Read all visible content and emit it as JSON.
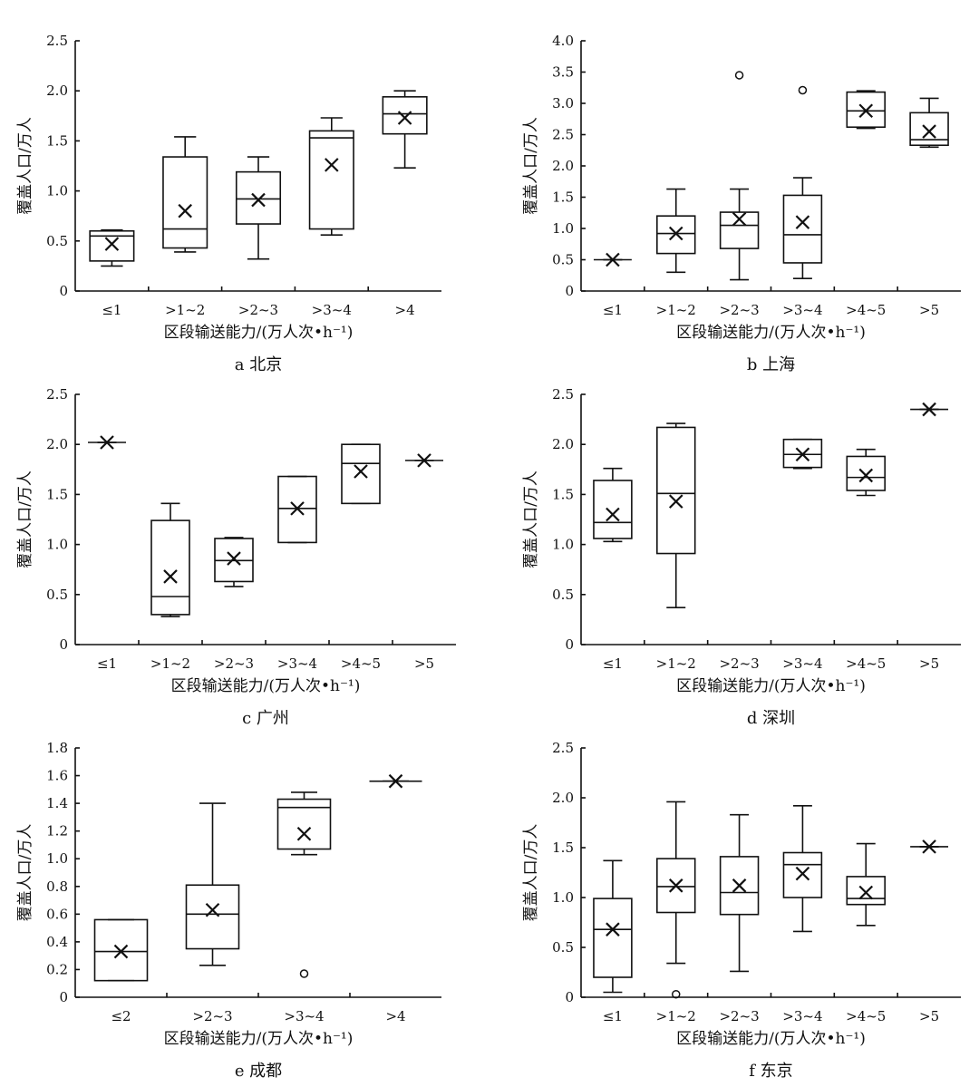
{
  "chart_data": [
    {
      "type": "box",
      "caption": "a 北京",
      "ylabel": "覆盖人口/万人",
      "xlabel": "区段输送能力/(万人次•h⁻¹)",
      "ylim": [
        0,
        2.5
      ],
      "yticks": [
        "0",
        "0.5",
        "1.0",
        "1.5",
        "2.0",
        "2.5"
      ],
      "categories": [
        "≤1",
        ">1~2",
        ">2~3",
        ">3~4",
        ">4"
      ],
      "boxes": [
        {
          "min": 0.25,
          "q1": 0.3,
          "median": 0.55,
          "q3": 0.6,
          "max": 0.61,
          "mean": 0.47
        },
        {
          "min": 0.39,
          "q1": 0.43,
          "median": 0.62,
          "q3": 1.34,
          "max": 1.54,
          "mean": 0.8
        },
        {
          "min": 0.32,
          "q1": 0.67,
          "median": 0.92,
          "q3": 1.19,
          "max": 1.34,
          "mean": 0.91
        },
        {
          "min": 0.56,
          "q1": 0.62,
          "median": 1.53,
          "q3": 1.6,
          "max": 1.73,
          "mean": 1.26
        },
        {
          "min": 1.23,
          "q1": 1.57,
          "median": 1.77,
          "q3": 1.94,
          "max": 2.0,
          "mean": 1.73
        }
      ],
      "outliers": []
    },
    {
      "type": "box",
      "caption": "b 上海",
      "ylabel": "覆盖人口/万人",
      "xlabel": "区段输送能力/(万人次•h⁻¹)",
      "ylim": [
        0,
        4.0
      ],
      "yticks": [
        "0",
        "0.5",
        "1.0",
        "1.5",
        "2.0",
        "2.5",
        "3.0",
        "3.5",
        "4.0"
      ],
      "categories": [
        "≤1",
        ">1~2",
        ">2~3",
        ">3~4",
        ">4~5",
        ">5"
      ],
      "boxes": [
        {
          "min": 0.5,
          "q1": 0.5,
          "median": 0.5,
          "q3": 0.5,
          "max": 0.5,
          "mean": 0.5
        },
        {
          "min": 0.3,
          "q1": 0.6,
          "median": 0.92,
          "q3": 1.2,
          "max": 1.63,
          "mean": 0.92
        },
        {
          "min": 0.18,
          "q1": 0.68,
          "median": 1.05,
          "q3": 1.26,
          "max": 1.63,
          "mean": 1.15
        },
        {
          "min": 0.2,
          "q1": 0.45,
          "median": 0.9,
          "q3": 1.53,
          "max": 1.81,
          "mean": 1.1
        },
        {
          "min": 2.6,
          "q1": 2.62,
          "median": 2.88,
          "q3": 3.18,
          "max": 3.2,
          "mean": 2.88
        },
        {
          "min": 2.3,
          "q1": 2.33,
          "median": 2.42,
          "q3": 2.85,
          "max": 3.08,
          "mean": 2.55
        }
      ],
      "outliers": [
        {
          "cat": 2,
          "value": 3.45
        },
        {
          "cat": 3,
          "value": 3.21
        }
      ]
    },
    {
      "type": "box",
      "caption": "c 广州",
      "ylabel": "覆盖人口/万人",
      "xlabel": "区段输送能力/(万人次•h⁻¹)",
      "ylim": [
        0,
        2.5
      ],
      "yticks": [
        "0",
        "0.5",
        "1.0",
        "1.5",
        "2.0",
        "2.5"
      ],
      "categories": [
        "≤1",
        ">1~2",
        ">2~3",
        ">3~4",
        ">4~5",
        ">5"
      ],
      "boxes": [
        {
          "min": 2.02,
          "q1": 2.02,
          "median": 2.02,
          "q3": 2.02,
          "max": 2.02,
          "mean": 2.02
        },
        {
          "min": 0.28,
          "q1": 0.3,
          "median": 0.48,
          "q3": 1.24,
          "max": 1.41,
          "mean": 0.68
        },
        {
          "min": 0.58,
          "q1": 0.63,
          "median": 0.84,
          "q3": 1.06,
          "max": 1.07,
          "mean": 0.86
        },
        {
          "min": 1.02,
          "q1": 1.02,
          "median": 1.36,
          "q3": 1.68,
          "max": 1.68,
          "mean": 1.36
        },
        {
          "min": 1.41,
          "q1": 1.41,
          "median": 1.81,
          "q3": 2.0,
          "max": 2.0,
          "mean": 1.73
        },
        {
          "min": 1.84,
          "q1": 1.84,
          "median": 1.84,
          "q3": 1.84,
          "max": 1.84,
          "mean": 1.84
        }
      ],
      "outliers": []
    },
    {
      "type": "box",
      "caption": "d 深圳",
      "ylabel": "覆盖人口/万人",
      "xlabel": "区段输送能力/(万人次•h⁻¹)",
      "ylim": [
        0,
        2.5
      ],
      "yticks": [
        "0",
        "0.5",
        "1.0",
        "1.5",
        "2.0",
        "2.5"
      ],
      "categories": [
        "≤1",
        ">1~2",
        ">2~3",
        ">3~4",
        ">4~5",
        ">5"
      ],
      "boxes": [
        {
          "min": 1.03,
          "q1": 1.06,
          "median": 1.22,
          "q3": 1.64,
          "max": 1.76,
          "mean": 1.3
        },
        {
          "min": 0.37,
          "q1": 0.91,
          "median": 1.51,
          "q3": 2.17,
          "max": 2.21,
          "mean": 1.43
        },
        null,
        {
          "min": 1.76,
          "q1": 1.77,
          "median": 1.9,
          "q3": 2.05,
          "max": 2.05,
          "mean": 1.9
        },
        {
          "min": 1.49,
          "q1": 1.54,
          "median": 1.67,
          "q3": 1.88,
          "max": 1.95,
          "mean": 1.69
        },
        {
          "min": 2.35,
          "q1": 2.35,
          "median": 2.35,
          "q3": 2.35,
          "max": 2.35,
          "mean": 2.35
        }
      ],
      "outliers": []
    },
    {
      "type": "box",
      "caption": "e 成都",
      "ylabel": "覆盖人口/万人",
      "xlabel": "区段输送能力/(万人次•h⁻¹)",
      "ylim": [
        0,
        1.8
      ],
      "yticks": [
        "0",
        "0.2",
        "0.4",
        "0.6",
        "0.8",
        "1.0",
        "1.2",
        "1.4",
        "1.6",
        "1.8"
      ],
      "categories": [
        "≤2",
        ">2~3",
        ">3~4",
        ">4"
      ],
      "boxes": [
        {
          "min": 0.12,
          "q1": 0.12,
          "median": 0.33,
          "q3": 0.56,
          "max": 0.56,
          "mean": 0.33
        },
        {
          "min": 0.23,
          "q1": 0.35,
          "median": 0.6,
          "q3": 0.81,
          "max": 1.4,
          "mean": 0.63
        },
        {
          "min": 1.03,
          "q1": 1.07,
          "median": 1.37,
          "q3": 1.43,
          "max": 1.48,
          "mean": 1.18
        },
        {
          "min": 1.56,
          "q1": 1.56,
          "median": 1.56,
          "q3": 1.56,
          "max": 1.56,
          "mean": 1.56
        }
      ],
      "outliers": [
        {
          "cat": 2,
          "value": 0.17
        }
      ]
    },
    {
      "type": "box",
      "caption": "f 东京",
      "ylabel": "覆盖人口/万人",
      "xlabel": "区段输送能力/(万人次•h⁻¹)",
      "ylim": [
        0,
        2.5
      ],
      "yticks": [
        "0",
        "0.5",
        "1.0",
        "1.5",
        "2.0",
        "2.5"
      ],
      "categories": [
        "≤1",
        ">1~2",
        ">2~3",
        ">3~4",
        ">4~5",
        ">5"
      ],
      "boxes": [
        {
          "min": 0.05,
          "q1": 0.2,
          "median": 0.68,
          "q3": 0.99,
          "max": 1.37,
          "mean": 0.68
        },
        {
          "min": 0.34,
          "q1": 0.85,
          "median": 1.11,
          "q3": 1.39,
          "max": 1.96,
          "mean": 1.12
        },
        {
          "min": 0.26,
          "q1": 0.83,
          "median": 1.05,
          "q3": 1.41,
          "max": 1.83,
          "mean": 1.12
        },
        {
          "min": 0.66,
          "q1": 1.0,
          "median": 1.33,
          "q3": 1.45,
          "max": 1.92,
          "mean": 1.24
        },
        {
          "min": 0.72,
          "q1": 0.93,
          "median": 0.99,
          "q3": 1.21,
          "max": 1.54,
          "mean": 1.05
        },
        {
          "min": 1.51,
          "q1": 1.51,
          "median": 1.51,
          "q3": 1.51,
          "max": 1.51,
          "mean": 1.51
        }
      ],
      "outliers": [
        {
          "cat": 1,
          "value": 0.03
        }
      ]
    }
  ]
}
